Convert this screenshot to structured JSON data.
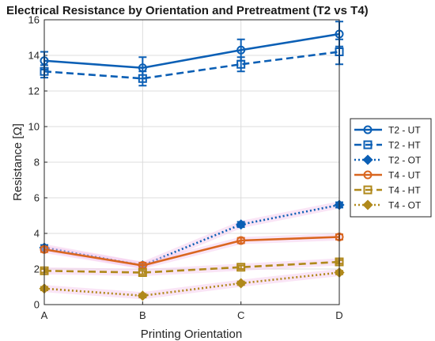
{
  "chart_data": {
    "type": "line",
    "title": "Electrical Resistance by Orientation and Pretreatment (T2 vs T4)",
    "xlabel": "Printing Orientation",
    "ylabel": "Resistance [Ω]",
    "categories": [
      "A",
      "B",
      "C",
      "D"
    ],
    "ylim": [
      0,
      16
    ],
    "yticks": [
      "0",
      "2",
      "4",
      "6",
      "8",
      "10",
      "12",
      "14",
      "16"
    ],
    "grid": true,
    "legend_position": "right",
    "series": [
      {
        "name": "T2 - UT",
        "values": [
          13.7,
          13.3,
          14.3,
          15.2
        ],
        "errors": [
          0.5,
          0.6,
          0.6,
          0.7
        ],
        "color": "#0b5fb5",
        "dash": "solid",
        "marker": "circle"
      },
      {
        "name": "T2 - HT",
        "values": [
          13.1,
          12.7,
          13.5,
          14.2
        ],
        "errors": [
          0.35,
          0.4,
          0.4,
          0.7
        ],
        "color": "#0b5fb5",
        "dash": "dashed",
        "marker": "square"
      },
      {
        "name": "T2 - OT",
        "values": [
          3.2,
          2.2,
          4.5,
          5.6
        ],
        "errors": [
          0.15,
          0.15,
          0.15,
          0.15
        ],
        "color": "#0b5fb5",
        "dash": "dotted",
        "marker": "diamond"
      },
      {
        "name": "T4 - UT",
        "values": [
          3.1,
          2.2,
          3.6,
          3.8
        ],
        "errors": [
          0.15,
          0.15,
          0.15,
          0.15
        ],
        "color": "#d9661f",
        "dash": "solid",
        "marker": "circle"
      },
      {
        "name": "T4 - HT",
        "values": [
          1.9,
          1.8,
          2.1,
          2.4
        ],
        "errors": [
          0.1,
          0.1,
          0.1,
          0.1
        ],
        "color": "#b0891b",
        "dash": "dashed",
        "marker": "square"
      },
      {
        "name": "T4 - OT",
        "values": [
          0.9,
          0.5,
          1.2,
          1.8
        ],
        "errors": [
          0.1,
          0.1,
          0.1,
          0.1
        ],
        "color": "#b0891b",
        "dash": "dotted",
        "marker": "diamond"
      }
    ]
  }
}
